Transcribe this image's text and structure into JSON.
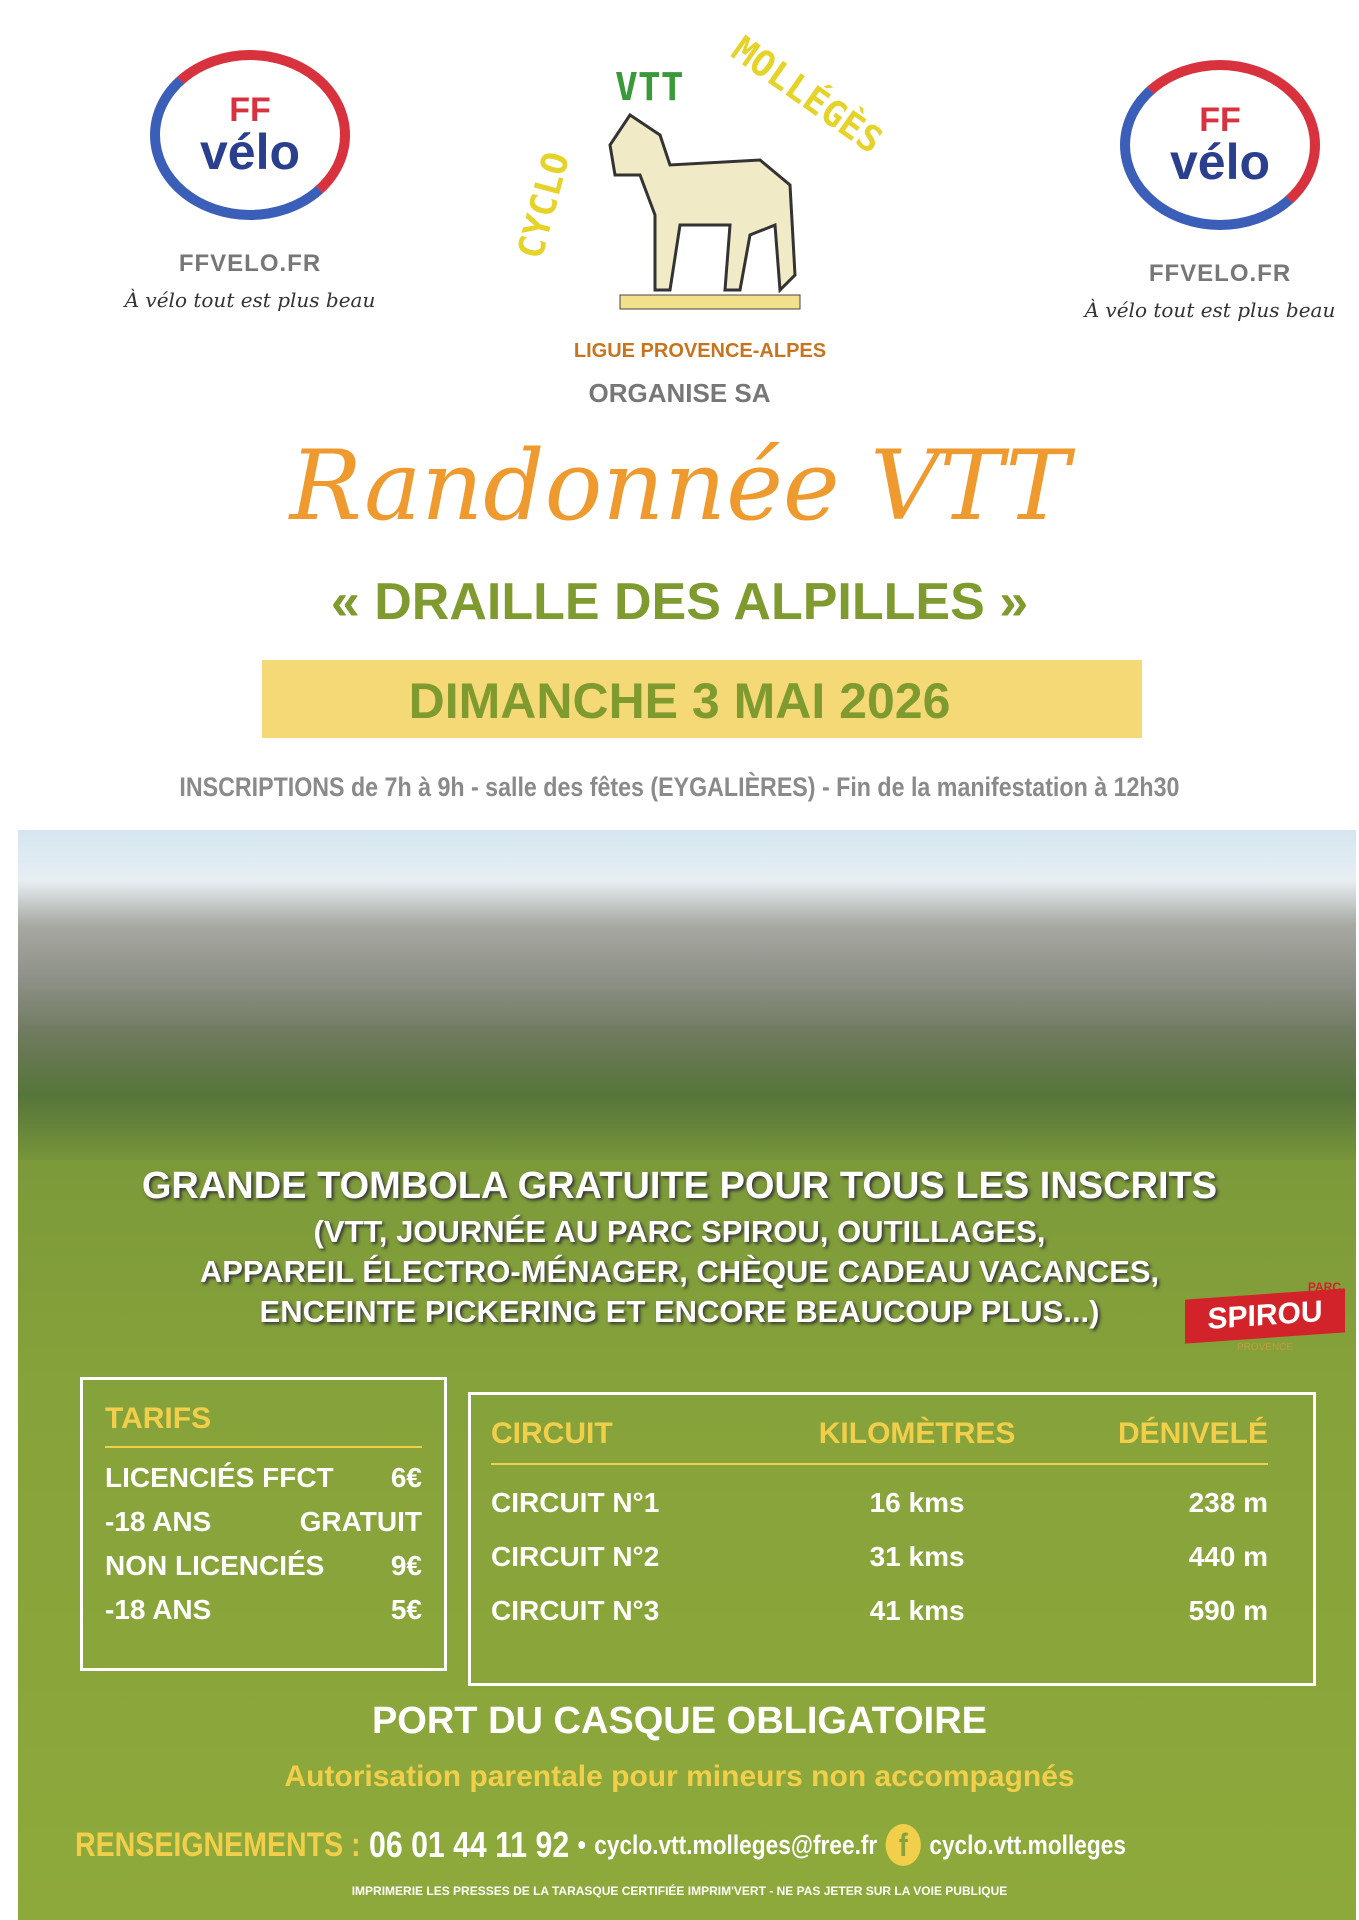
{
  "logos": {
    "left": {
      "ff": "FF",
      "velo": "vélo",
      "site": "FFVELO.FR",
      "slogan": "À vélo tout est plus beau"
    },
    "right": {
      "ff": "FF",
      "velo": "vélo",
      "site": "FFVELO.FR",
      "slogan": "À vélo tout est plus beau"
    },
    "club": {
      "arc_cyclo": "CYCLO",
      "arc_vtt": "VTT",
      "arc_molleges": "MOLLÉGÈS",
      "league": "LIGUE PROVENCE-ALPES"
    }
  },
  "organise": "ORGANISE SA",
  "title": "Randonnée VTT",
  "subtitle": "« DRAILLE DES ALPILLES »",
  "date": "DIMANCHE 3 MAI 2026",
  "inscriptions": "INSCRIPTIONS de 7h à 9h - salle des fêtes (EYGALIÈRES) - Fin de la manifestation à 12h30",
  "tombola": {
    "headline": "GRANDE TOMBOLA GRATUITE POUR TOUS LES INSCRITS",
    "lines": [
      "(VTT, JOURNÉE AU PARC SPIROU, OUTILLAGES,",
      "APPAREIL ÉLECTRO-MÉNAGER, CHÈQUE CADEAU VACANCES,",
      "ENCEINTE PICKERING ET ENCORE BEAUCOUP PLUS...)"
    ]
  },
  "spirou": {
    "parc": "PARC",
    "name": "SPIROU",
    "region": "PROVENCE"
  },
  "tarifs": {
    "header": "TARIFS",
    "rows": [
      {
        "label": "LICENCIÉS FFCT",
        "price": "6€"
      },
      {
        "label": "-18 ANS",
        "price": "GRATUIT"
      },
      {
        "label": "NON LICENCIÉS",
        "price": "9€"
      },
      {
        "label": "-18 ANS",
        "price": "5€"
      }
    ]
  },
  "circuits": {
    "headers": [
      "CIRCUIT",
      "KILOMÈTRES",
      "DÉNIVELÉ"
    ],
    "rows": [
      [
        "CIRCUIT N°1",
        "16 kms",
        "238 m"
      ],
      [
        "CIRCUIT N°2",
        "31 kms",
        "440 m"
      ],
      [
        "CIRCUIT N°3",
        "41 kms",
        "590 m"
      ]
    ]
  },
  "casque": "PORT DU CASQUE OBLIGATOIRE",
  "autorisation": "Autorisation parentale pour mineurs non accompagnés",
  "contact": {
    "label": "RENSEIGNEMENTS :",
    "phone": "06 01 44 11 92",
    "email": "cyclo.vtt.molleges@free.fr",
    "facebook": "cyclo.vtt.molleges"
  },
  "footer": "IMPRIMERIE LES PRESSES DE LA TARASQUE CERTIFIÉE IMPRIM'VERT - NE PAS JETER SUR LA VOIE PUBLIQUE",
  "colors": {
    "orange": "#ee9a2e",
    "olive": "#7f9a2e",
    "yellow_band": "#f6d977",
    "green_bg": "#86a23a",
    "accent_yellow": "#f2cf4a"
  }
}
